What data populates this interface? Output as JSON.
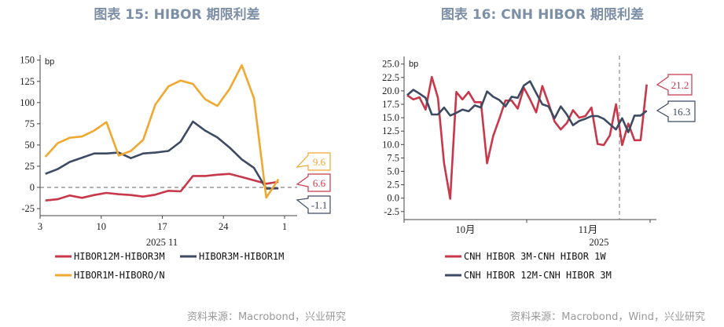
{
  "colors": {
    "red": "#c8374a",
    "navy": "#3c4a64",
    "orange": "#f0a830",
    "title": "#7d8fa6"
  },
  "chart_data": [
    {
      "type": "line",
      "title": "图表 15: HIBOR 期限利差",
      "ylabel": "bp",
      "xlabel": "2025 11",
      "ylim": [
        -25,
        150
      ],
      "yticks": [
        "150",
        "125",
        "100",
        "75",
        "50",
        "25",
        "0",
        "-25"
      ],
      "ytick_values": [
        150,
        125,
        100,
        75,
        50,
        25,
        0,
        -25
      ],
      "xticks": [
        "3",
        "10",
        "17",
        "24",
        "1"
      ],
      "xtick_days": [
        3,
        10,
        17,
        24,
        31
      ],
      "x_days": [
        3.6,
        5.0,
        6.4,
        7.8,
        9.2,
        10.6,
        12.0,
        13.4,
        14.8,
        16.2,
        17.7,
        19.1,
        20.5,
        21.9,
        23.3,
        24.7,
        26.1,
        27.5,
        28.9,
        30.3
      ],
      "zero_line": "dashed",
      "series": [
        {
          "name": "HIBOR12M-HIBOR3M",
          "color": "#c8374a",
          "last_label": "6.6",
          "values": [
            -15.4,
            -14,
            -9.5,
            -12.3,
            -9,
            -6.5,
            -8,
            -9,
            -10.8,
            -8.6,
            -4,
            -4.6,
            13.5,
            13.5,
            15,
            16,
            12.3,
            8.3,
            4.3,
            6.6
          ]
        },
        {
          "name": "HIBOR3M-HIBOR1M",
          "color": "#3c4a64",
          "last_label": "-1.1",
          "values": [
            16,
            21.5,
            30,
            35,
            40,
            40,
            41,
            34.5,
            40,
            41,
            43,
            54,
            77.6,
            67,
            59,
            47,
            33,
            23,
            -1.5,
            -1.1
          ]
        },
        {
          "name": "HIBOR1M-HIBORO/N",
          "color": "#f0a830",
          "last_label": "9.6",
          "values": [
            36,
            52,
            58.5,
            60,
            67,
            77,
            37.5,
            43,
            56,
            97.6,
            119,
            126,
            122,
            104,
            96,
            116,
            144,
            105,
            -12,
            9.6
          ]
        }
      ],
      "legend": "bottom",
      "source": "资料来源：Macrobond，兴业研究"
    },
    {
      "type": "line",
      "title": "图表 16: CNH HIBOR 期限利差",
      "ylabel": "bp",
      "xlabel": "2025",
      "ylim": [
        -3.75,
        26.25
      ],
      "yticks": [
        "25.0",
        "22.5",
        "20.0",
        "17.5",
        "15.0",
        "12.5",
        "10.0",
        "7.5",
        "5.0",
        "2.5",
        "0.0",
        "-2.5"
      ],
      "ytick_values": [
        25,
        22.5,
        20,
        17.5,
        15,
        12.5,
        10,
        7.5,
        5,
        2.5,
        0,
        -2.5
      ],
      "xticks": [
        "10月",
        "11月"
      ],
      "vertical_marker": "dashed",
      "series": [
        {
          "name": "CNH HIBOR 3M-CNH HIBOR 1W",
          "color": "#c8374a",
          "last_label": "21.2",
          "values": [
            19.2,
            18.4,
            18.8,
            16.5,
            22.6,
            18.7,
            6.5,
            -0.1,
            19.8,
            18.4,
            19.8,
            17.9,
            17.9,
            6.5,
            11.6,
            14.8,
            18.2,
            18.2,
            16.7,
            20.6,
            18.4,
            16.0,
            20.9,
            17.7,
            14.3,
            12.8,
            14.0,
            16.4,
            15.0,
            15.3,
            16.9,
            10.1,
            9.9,
            11.7,
            17.5,
            9.9,
            13.9,
            10.8,
            10.8,
            21.2
          ]
        },
        {
          "name": "CNH HIBOR 12M-CNH HIBOR 3M",
          "color": "#3c4a64",
          "last_label": "16.3",
          "values": [
            19.2,
            20.2,
            19.5,
            18.7,
            15.6,
            15.6,
            16.9,
            15.4,
            15.9,
            16.5,
            16.2,
            17.3,
            16.9,
            19.9,
            18.9,
            18.3,
            17.1,
            18.9,
            18.7,
            21.0,
            21.8,
            19.6,
            17.5,
            17.1,
            14.9,
            17.1,
            15.6,
            13.6,
            14.4,
            14.8,
            15.3,
            15.3,
            14.8,
            13.8,
            12.8,
            14.9,
            12.3,
            15.4,
            15.4,
            16.3
          ]
        }
      ],
      "legend": "bottom",
      "source": "资料来源：Macrobond，Wind，兴业研究"
    }
  ]
}
